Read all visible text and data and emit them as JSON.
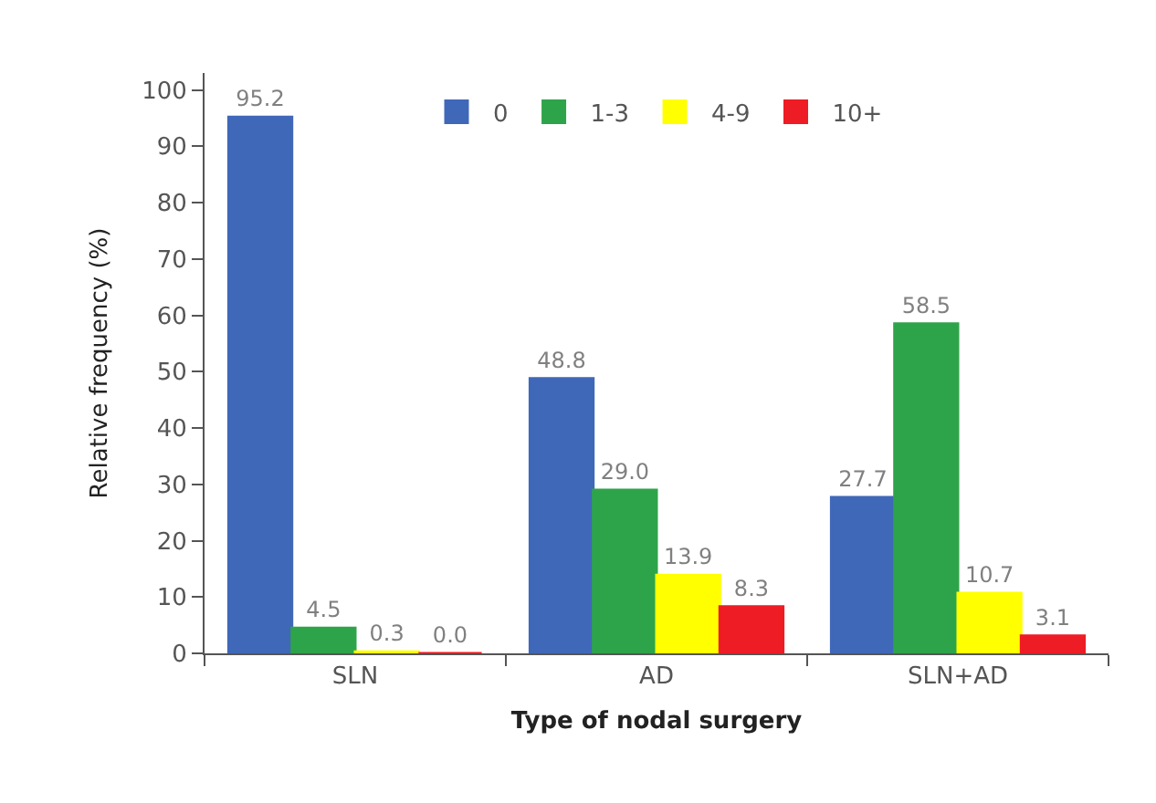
{
  "chart_data": {
    "type": "bar",
    "xlabel": "Type of nodal surgery",
    "ylabel": "Relative frequency (%)",
    "categories": [
      "SLN",
      "AD",
      "SLN+AD"
    ],
    "series": [
      {
        "name": "0",
        "color": "#4068b8",
        "values": [
          95.2,
          48.8,
          27.7
        ],
        "value_labels": [
          "95.2",
          "48.8",
          "27.7"
        ]
      },
      {
        "name": "1-3",
        "color": "#2ea44a",
        "values": [
          4.5,
          29.0,
          58.5
        ],
        "value_labels": [
          "4.5",
          "29.0",
          "58.5"
        ]
      },
      {
        "name": "4-9",
        "color": "#ffff00",
        "values": [
          0.3,
          13.9,
          10.7
        ],
        "value_labels": [
          "0.3",
          "13.9",
          "10.7"
        ]
      },
      {
        "name": "10+",
        "color": "#ee1c24",
        "values": [
          0.0,
          8.3,
          3.1
        ],
        "value_labels": [
          "0.0",
          "8.3",
          "3.1"
        ]
      }
    ],
    "ylim": [
      0,
      103
    ],
    "yticks": [
      0,
      10,
      20,
      30,
      40,
      50,
      60,
      70,
      80,
      90,
      100
    ],
    "legend": "top"
  }
}
